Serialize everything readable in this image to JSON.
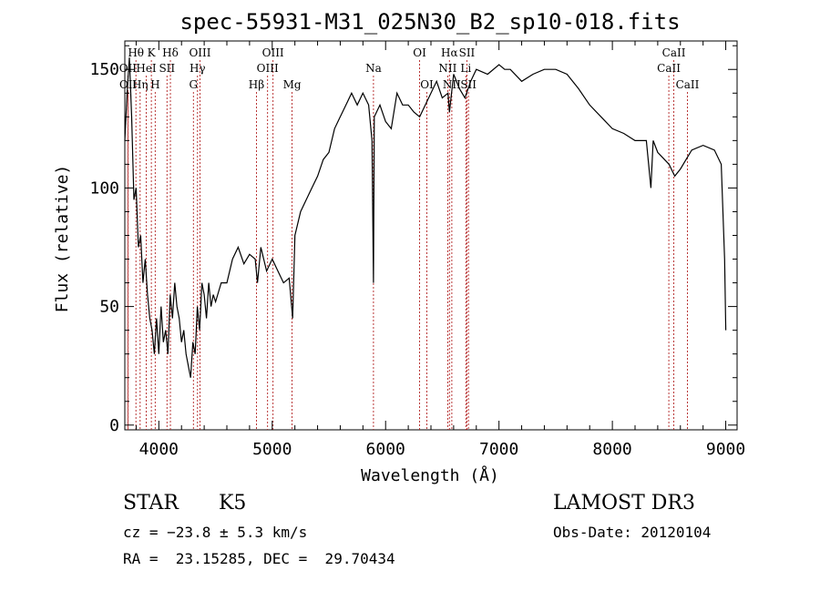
{
  "chart_data": {
    "type": "line",
    "title": "spec-55931-M31_025N30_B2_sp10-018.fits",
    "xlabel": "Wavelength (Å)",
    "ylabel": "Flux (relative)",
    "xlim": [
      3700,
      9100
    ],
    "ylim": [
      -2,
      162
    ],
    "xticks": [
      "4000",
      "5000",
      "6000",
      "7000",
      "8000",
      "9000"
    ],
    "yticks": [
      "0",
      "50",
      "100",
      "150"
    ],
    "grid": false,
    "series": [
      {
        "x": [
          3700,
          3720,
          3740,
          3760,
          3780,
          3800,
          3820,
          3840,
          3860,
          3880,
          3900,
          3920,
          3940,
          3960,
          3980,
          4000,
          4020,
          4040,
          4060,
          4080,
          4100,
          4120,
          4140,
          4160,
          4180,
          4200,
          4220,
          4240,
          4260,
          4280,
          4300,
          4320,
          4340,
          4360,
          4380,
          4400,
          4420,
          4440,
          4460,
          4480,
          4500,
          4550,
          4600,
          4650,
          4700,
          4750,
          4800,
          4850,
          4870,
          4900,
          4950,
          5000,
          5050,
          5100,
          5150,
          5180,
          5200,
          5250,
          5300,
          5350,
          5400,
          5450,
          5500,
          5550,
          5600,
          5650,
          5700,
          5750,
          5800,
          5850,
          5880,
          5893,
          5900,
          5950,
          6000,
          6050,
          6100,
          6150,
          6200,
          6250,
          6300,
          6350,
          6400,
          6450,
          6500,
          6550,
          6563,
          6600,
          6650,
          6700,
          6750,
          6800,
          6900,
          7000,
          7050,
          7100,
          7200,
          7300,
          7400,
          7500,
          7600,
          7700,
          7800,
          7900,
          8000,
          8100,
          8200,
          8300,
          8340,
          8360,
          8400,
          8500,
          8550,
          8600,
          8650,
          8700,
          8800,
          8900,
          8960,
          8990,
          9000
        ],
        "y": [
          120,
          140,
          155,
          130,
          95,
          100,
          75,
          80,
          60,
          70,
          55,
          45,
          40,
          30,
          45,
          30,
          50,
          35,
          40,
          30,
          55,
          45,
          60,
          50,
          45,
          35,
          40,
          30,
          25,
          20,
          35,
          30,
          50,
          40,
          60,
          55,
          45,
          60,
          50,
          55,
          52,
          60,
          60,
          70,
          75,
          68,
          72,
          70,
          60,
          75,
          65,
          70,
          65,
          60,
          62,
          45,
          80,
          90,
          95,
          100,
          105,
          112,
          115,
          125,
          130,
          135,
          140,
          135,
          140,
          135,
          120,
          60,
          130,
          135,
          128,
          125,
          140,
          135,
          135,
          132,
          130,
          135,
          140,
          145,
          138,
          140,
          132,
          148,
          142,
          138,
          145,
          150,
          148,
          152,
          150,
          150,
          145,
          148,
          150,
          150,
          148,
          142,
          135,
          130,
          125,
          123,
          120,
          120,
          100,
          120,
          115,
          110,
          105,
          108,
          112,
          116,
          118,
          116,
          110,
          70,
          40
        ]
      }
    ],
    "spectral_lines": [
      {
        "name": "Hθ",
        "x": 3798,
        "row": 1
      },
      {
        "name": "OII",
        "x": 3727,
        "row": 2
      },
      {
        "name": "OII",
        "x": 3729,
        "row": 3
      },
      {
        "name": "Hη",
        "x": 3835,
        "row": 3
      },
      {
        "name": "K",
        "x": 3934,
        "row": 1
      },
      {
        "name": "H",
        "x": 3968,
        "row": 3
      },
      {
        "name": "HeI",
        "x": 3889,
        "row": 2
      },
      {
        "name": "SII",
        "x": 4072,
        "row": 2
      },
      {
        "name": "Hδ",
        "x": 4102,
        "row": 1
      },
      {
        "name": "G",
        "x": 4305,
        "row": 3
      },
      {
        "name": "OIII",
        "x": 4363,
        "row": 1
      },
      {
        "name": "Hγ",
        "x": 4341,
        "row": 2
      },
      {
        "name": "Hβ",
        "x": 4861,
        "row": 3
      },
      {
        "name": "OIII",
        "x": 5007,
        "row": 1
      },
      {
        "name": "OIII",
        "x": 4959,
        "row": 2
      },
      {
        "name": "Mg",
        "x": 5175,
        "row": 3
      },
      {
        "name": "Na",
        "x": 5893,
        "row": 2
      },
      {
        "name": "OI",
        "x": 6300,
        "row": 1
      },
      {
        "name": "OI",
        "x": 6364,
        "row": 3
      },
      {
        "name": "Hα",
        "x": 6563,
        "row": 1
      },
      {
        "name": "NII",
        "x": 6548,
        "row": 2
      },
      {
        "name": "NII",
        "x": 6584,
        "row": 3
      },
      {
        "name": "SII",
        "x": 6717,
        "row": 1
      },
      {
        "name": "Li",
        "x": 6708,
        "row": 2
      },
      {
        "name": "SII",
        "x": 6731,
        "row": 3
      },
      {
        "name": "CaII",
        "x": 8542,
        "row": 1
      },
      {
        "name": "CaII",
        "x": 8498,
        "row": 2
      },
      {
        "name": "CaII",
        "x": 8662,
        "row": 3
      }
    ]
  },
  "info": {
    "object_class": "STAR",
    "subclass": "K5",
    "survey": "LAMOST DR3",
    "cz": "cz = −23.8 ± 5.3 km/s",
    "obs_date": "Obs-Date: 20120104",
    "coords": "RA =  23.15285, DEC =  29.70434"
  }
}
